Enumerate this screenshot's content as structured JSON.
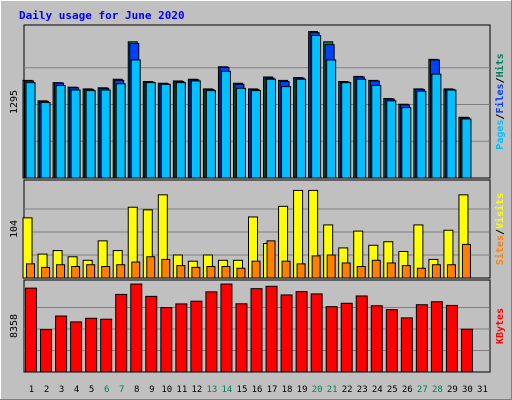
{
  "chart_data": {
    "type": "bar",
    "title": "Daily usage for June 2020",
    "colors": {
      "background": "#c0c0c0",
      "title": "#0000ff",
      "hits": "#00805c",
      "files": "#0040ff",
      "pages": "#00c0ff",
      "visits": "#ffff00",
      "sites": "#ff8000",
      "kbytes": "#ff0000",
      "weekend_label": "#00805c",
      "weekday_label": "#000000"
    },
    "categories": [
      "1",
      "2",
      "3",
      "4",
      "5",
      "6",
      "7",
      "8",
      "9",
      "10",
      "11",
      "12",
      "13",
      "14",
      "15",
      "16",
      "17",
      "18",
      "19",
      "20",
      "21",
      "22",
      "23",
      "24",
      "25",
      "26",
      "27",
      "28",
      "29",
      "30",
      "31"
    ],
    "weekend_days": [
      "6",
      "7",
      "13",
      "14",
      "20",
      "21",
      "27",
      "28"
    ],
    "panels": [
      {
        "id": "hits-files-pages",
        "ymax_label": "1295",
        "ymax": 1295,
        "right_label": [
          {
            "text": "Pages",
            "color_key": "pages"
          },
          {
            "text": "/",
            "color_key": "weekday_label"
          },
          {
            "text": "Files",
            "color_key": "files"
          },
          {
            "text": "/",
            "color_key": "weekday_label"
          },
          {
            "text": "Hits",
            "color_key": "hits"
          }
        ],
        "series": [
          {
            "name": "Hits",
            "color_key": "hits",
            "values": [
              860,
              680,
              840,
              800,
              785,
              795,
              870,
              1200,
              850,
              835,
              855,
              870,
              785,
              980,
              835,
              785,
              890,
              860,
              885,
              1290,
              1200,
              850,
              895,
              860,
              700,
              650,
              785,
              1045,
              785,
              535,
              null
            ]
          },
          {
            "name": "Files",
            "color_key": "files",
            "values": [
              855,
              675,
              835,
              795,
              780,
              790,
              860,
              1185,
              845,
              830,
              850,
              865,
              780,
              975,
              825,
              780,
              880,
              850,
              880,
              1280,
              1175,
              845,
              890,
              855,
              695,
              645,
              780,
              1040,
              780,
              530,
              null
            ]
          },
          {
            "name": "Pages",
            "color_key": "pages",
            "values": [
              840,
              665,
              815,
              775,
              770,
              775,
              830,
              1040,
              840,
              825,
              840,
              855,
              770,
              940,
              790,
              770,
              870,
              805,
              870,
              1255,
              1040,
              840,
              870,
              815,
              680,
              620,
              765,
              915,
              775,
              520,
              null
            ]
          }
        ]
      },
      {
        "id": "visits-sites",
        "ymax_label": "104",
        "ymax": 104,
        "right_label": [
          {
            "text": "Sites",
            "color_key": "sites"
          },
          {
            "text": "/",
            "color_key": "weekday_label"
          },
          {
            "text": "Visits",
            "color_key": "visits"
          }
        ],
        "series": [
          {
            "name": "Visits",
            "color_key": "visits",
            "values": [
              68,
              27,
              31,
              24,
              20,
              42,
              31,
              80,
              77,
              94,
              26,
              19,
              26,
              20,
              20,
              69,
              39,
              81,
              99,
              99,
              60,
              34,
              53,
              37,
              41,
              30,
              60,
              21,
              54,
              94,
              null
            ]
          },
          {
            "name": "Sites",
            "color_key": "sites",
            "values": [
              16,
              12,
              15,
              13,
              15,
              13,
              15,
              18,
              24,
              21,
              14,
              12,
              13,
              13,
              11,
              19,
              42,
              19,
              16,
              25,
              26,
              17,
              13,
              20,
              17,
              14,
              11,
              15,
              15,
              38,
              null
            ]
          }
        ]
      },
      {
        "id": "kbytes",
        "ymax_label": "8358",
        "ymax": 8358,
        "right_label": [
          {
            "text": "KBytes",
            "color_key": "kbytes"
          }
        ],
        "series": [
          {
            "name": "KBytes",
            "color_key": "kbytes",
            "values": [
              8150,
              4120,
              5440,
              4870,
              5220,
              5130,
              7540,
              8550,
              7350,
              6260,
              6620,
              6880,
              7790,
              8550,
              6630,
              8100,
              8330,
              7490,
              7810,
              7590,
              6350,
              6680,
              7390,
              6440,
              6060,
              5260,
              6540,
              6830,
              6470,
              4160,
              null
            ]
          }
        ]
      }
    ]
  }
}
